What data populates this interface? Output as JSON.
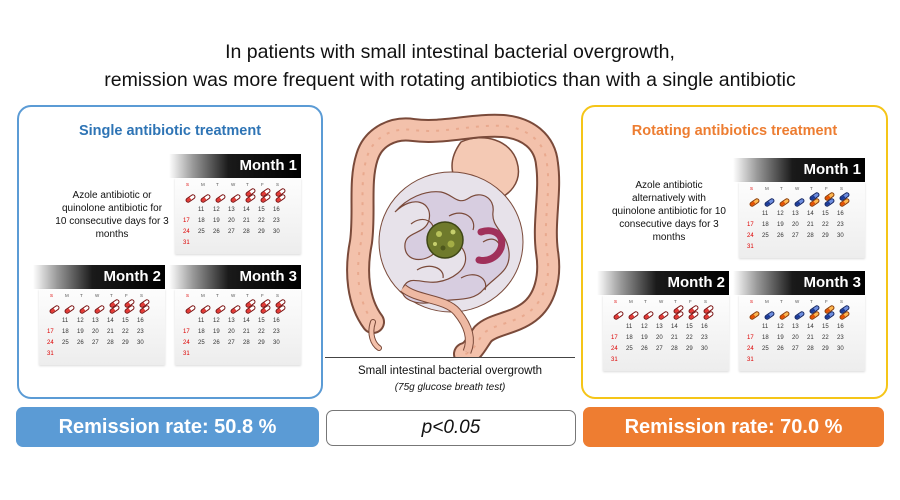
{
  "title": {
    "line1": "In patients with small intestinal bacterial overgrowth,",
    "line2": "remission was more frequent with rotating antibiotics than with a single antibiotic"
  },
  "left_panel": {
    "title": "Single antibiotic treatment",
    "description": [
      "Azole antibiotic or",
      "quinolone antibiotic for",
      "10 consecutive days for 3",
      "months"
    ],
    "month_labels": [
      "Month 1",
      "Month 2",
      "Month 3"
    ],
    "border_color": "#5b9bd5",
    "title_color": "#2e74b5"
  },
  "right_panel": {
    "title": "Rotating antibiotics treatment",
    "description": [
      "Azole antibiotic",
      "alternatively with",
      "quinolone antibiotic for 10",
      "consecutive days for 3",
      "months"
    ],
    "month_labels": [
      "Month 1",
      "Month 2",
      "Month 3"
    ],
    "border_color": "#f5c518",
    "title_color": "#ed7d31"
  },
  "calendar": {
    "weekdays": [
      "S",
      "M",
      "T",
      "W",
      "T",
      "F",
      "S"
    ],
    "rows": [
      [
        "11",
        "12",
        "13",
        "14",
        "15",
        "16"
      ],
      [
        "17",
        "18",
        "19",
        "20",
        "21",
        "22",
        "23"
      ],
      [
        "24",
        "25",
        "26",
        "27",
        "28",
        "29",
        "30"
      ],
      [
        "31"
      ]
    ],
    "pill_days": 10,
    "weekend_color": "#dd0000"
  },
  "center": {
    "caption": "Small intestinal bacterial overgrowth",
    "subcaption": "(75g glucose breath test)"
  },
  "results": {
    "left": "Remission rate: 50.8 %",
    "right": "Remission rate: 70.0 %",
    "pvalue": "p<0.05",
    "left_color": "#5b9bd5",
    "right_color": "#ee7d31"
  },
  "icons": [
    "intestine-illustration",
    "pill-icon",
    "calendar-icon"
  ]
}
